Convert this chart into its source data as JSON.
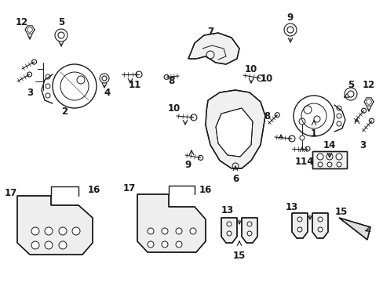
{
  "bg_color": "#ffffff",
  "line_color": "#1a1a1a",
  "figsize": [
    4.89,
    3.6
  ],
  "dpi": 100,
  "parts": {
    "label_font_size": 8.5,
    "label_bold": true
  }
}
